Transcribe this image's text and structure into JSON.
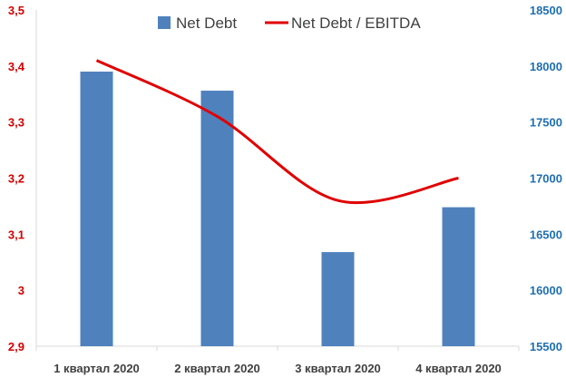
{
  "chart_data": {
    "type": "bar",
    "categories": [
      "1 квартал 2020",
      "2 квартал 2020",
      "3 квартал 2020",
      "4 квартал 2020"
    ],
    "series": [
      {
        "name": "Net Debt",
        "type": "bar",
        "axis": "right",
        "color": "#4f81bd",
        "values": [
          17950,
          17780,
          16340,
          16740
        ]
      },
      {
        "name": "Net Debt / EBITDA",
        "type": "line",
        "axis": "left",
        "color": "#e00000",
        "values": [
          3.41,
          3.31,
          3.16,
          3.2
        ]
      }
    ],
    "y_left": {
      "min": 2.9,
      "max": 3.5,
      "ticks": [
        "2,9",
        "3",
        "3,1",
        "3,2",
        "3,3",
        "3,4",
        "3,5"
      ],
      "color": "#d40000"
    },
    "y_right": {
      "min": 15500,
      "max": 18500,
      "ticks": [
        "15500",
        "16000",
        "16500",
        "17000",
        "17500",
        "18000",
        "18500"
      ],
      "color": "#1f6fb2"
    },
    "legend": {
      "placement": "top-center"
    },
    "grid": false
  }
}
